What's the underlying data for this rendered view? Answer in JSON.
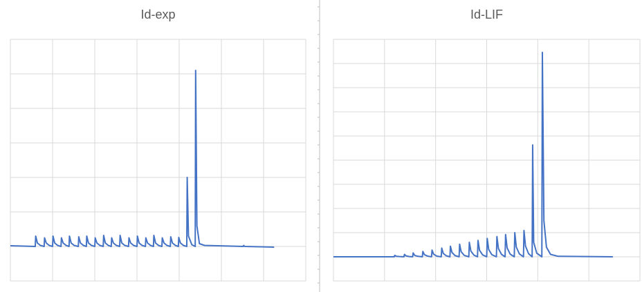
{
  "chart_data": [
    {
      "type": "line",
      "title": "Id-exp",
      "xlim": [
        0,
        7
      ],
      "xticks": [
        0,
        1,
        2,
        3,
        4,
        5,
        6,
        7
      ],
      "ylim": [
        0,
        7
      ],
      "yticks": [
        0,
        1,
        2,
        3,
        4,
        5,
        6,
        7
      ],
      "grid": true,
      "series": [
        {
          "color": "#4472c4",
          "x": [
            0,
            0.3,
            0.59,
            0.6,
            0.64,
            0.71,
            0.8,
            0.81,
            0.85,
            0.92,
            1.0,
            1.01,
            1.05,
            1.12,
            1.2,
            1.21,
            1.25,
            1.32,
            1.39,
            1.4,
            1.44,
            1.51,
            1.61,
            1.62,
            1.66,
            1.73,
            1.8,
            1.81,
            1.85,
            1.92,
            2.0,
            2.01,
            2.05,
            2.12,
            2.2,
            2.21,
            2.25,
            2.32,
            2.39,
            2.4,
            2.44,
            2.51,
            2.59,
            2.6,
            2.64,
            2.71,
            2.8,
            2.81,
            2.85,
            2.92,
            3.0,
            3.01,
            3.05,
            3.12,
            3.2,
            3.21,
            3.25,
            3.32,
            3.39,
            3.4,
            3.44,
            3.51,
            3.59,
            3.6,
            3.64,
            3.71,
            3.79,
            3.8,
            3.84,
            3.91,
            3.98,
            3.99,
            4.03,
            4.1,
            4.18,
            4.19,
            4.22,
            4.3,
            4.38,
            4.39,
            4.42,
            4.48,
            4.6,
            5.52,
            5.53,
            5.55,
            6.25
          ],
          "values": [
            1.02,
            1.01,
            1.0,
            1.3,
            1.1,
            1.03,
            1.0,
            1.25,
            1.1,
            1.03,
            1.0,
            1.3,
            1.1,
            1.03,
            1.0,
            1.25,
            1.1,
            1.03,
            1.0,
            1.3,
            1.1,
            1.03,
            1.0,
            1.28,
            1.1,
            1.03,
            1.0,
            1.3,
            1.1,
            1.03,
            1.0,
            1.25,
            1.1,
            1.03,
            1.0,
            1.32,
            1.1,
            1.03,
            1.0,
            1.25,
            1.1,
            1.03,
            1.0,
            1.32,
            1.1,
            1.03,
            1.0,
            1.25,
            1.1,
            1.03,
            1.0,
            1.3,
            1.1,
            1.03,
            1.0,
            1.25,
            1.1,
            1.03,
            1.0,
            1.32,
            1.1,
            1.03,
            1.0,
            1.25,
            1.1,
            1.03,
            1.0,
            1.28,
            1.1,
            1.03,
            1.0,
            1.26,
            1.1,
            1.03,
            1.0,
            3.0,
            1.3,
            1.05,
            1.0,
            6.1,
            1.6,
            1.08,
            1.03,
            1.0,
            1.03,
            1.0,
            0.98
          ]
        }
      ]
    },
    {
      "type": "line",
      "title": "Id-LIF",
      "xlim": [
        0,
        6
      ],
      "xticks": [
        0,
        1,
        2,
        3,
        4,
        5,
        6
      ],
      "ylim": [
        0,
        10
      ],
      "yticks": [
        0,
        1,
        2,
        3,
        4,
        5,
        6,
        7,
        8,
        9,
        10
      ],
      "grid": true,
      "series": [
        {
          "color": "#4472c4",
          "x": [
            0,
            1.0,
            1.19,
            1.2,
            1.23,
            1.29,
            1.38,
            1.39,
            1.42,
            1.48,
            1.55,
            1.56,
            1.59,
            1.65,
            1.74,
            1.75,
            1.78,
            1.84,
            1.92,
            1.93,
            1.96,
            2.02,
            2.11,
            2.12,
            2.15,
            2.21,
            2.28,
            2.29,
            2.32,
            2.38,
            2.46,
            2.47,
            2.5,
            2.56,
            2.65,
            2.66,
            2.69,
            2.75,
            2.82,
            2.83,
            2.86,
            2.92,
            3.0,
            3.01,
            3.04,
            3.1,
            3.19,
            3.2,
            3.23,
            3.29,
            3.36,
            3.37,
            3.4,
            3.46,
            3.54,
            3.55,
            3.58,
            3.64,
            3.72,
            3.73,
            3.76,
            3.82,
            3.89,
            3.9,
            3.92,
            3.98,
            4.08,
            4.09,
            4.12,
            4.17,
            4.25,
            4.4,
            5.47
          ],
          "values": [
            1.0,
            1.0,
            1.0,
            1.06,
            1.02,
            1.01,
            1.0,
            1.1,
            1.04,
            1.01,
            1.0,
            1.16,
            1.06,
            1.02,
            1.0,
            1.22,
            1.09,
            1.03,
            1.0,
            1.28,
            1.11,
            1.03,
            1.0,
            1.36,
            1.14,
            1.04,
            1.0,
            1.44,
            1.18,
            1.05,
            1.0,
            1.52,
            1.21,
            1.06,
            1.0,
            1.6,
            1.24,
            1.07,
            1.0,
            1.68,
            1.27,
            1.08,
            1.0,
            1.76,
            1.3,
            1.09,
            1.0,
            1.84,
            1.34,
            1.1,
            1.0,
            1.92,
            1.37,
            1.11,
            1.0,
            2.0,
            1.4,
            1.12,
            1.0,
            2.09,
            1.44,
            1.13,
            1.0,
            5.63,
            1.6,
            1.15,
            1.0,
            9.46,
            2.5,
            1.4,
            1.1,
            1.02,
            1.0
          ]
        }
      ]
    }
  ]
}
